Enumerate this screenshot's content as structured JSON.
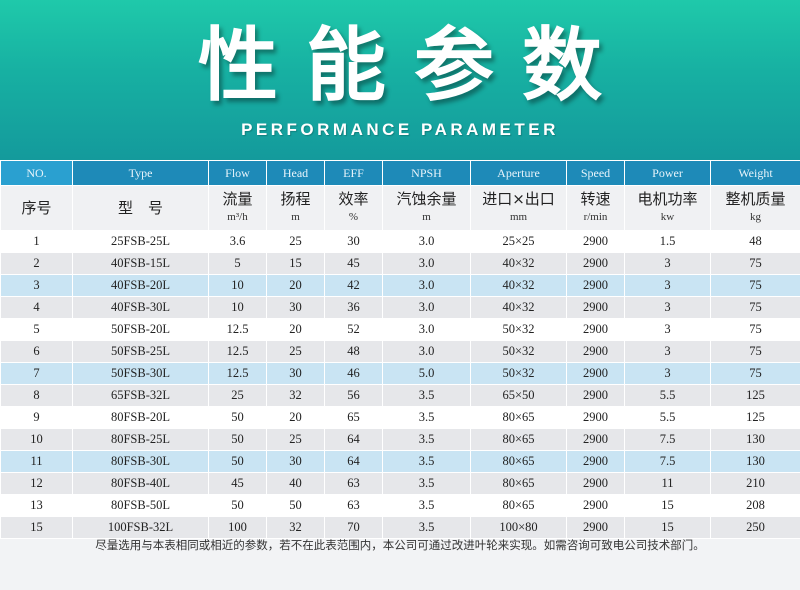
{
  "banner": {
    "title": "性能参数",
    "subtitle": "PERFORMANCE PARAMETER"
  },
  "columns": [
    {
      "en": "NO.",
      "cn": "序号",
      "unit": ""
    },
    {
      "en": "Type",
      "cn": "型　号",
      "unit": ""
    },
    {
      "en": "Flow",
      "cn": "流量",
      "unit": "m³/h"
    },
    {
      "en": "Head",
      "cn": "扬程",
      "unit": "m"
    },
    {
      "en": "EFF",
      "cn": "效率",
      "unit": "%"
    },
    {
      "en": "NPSH",
      "cn": "汽蚀余量",
      "unit": "m"
    },
    {
      "en": "Aperture",
      "cn": "进口×出口",
      "unit": "mm"
    },
    {
      "en": "Speed",
      "cn": "转速",
      "unit": "r/min"
    },
    {
      "en": "Power",
      "cn": "电机功率",
      "unit": "kw"
    },
    {
      "en": "Weight",
      "cn": "整机质量",
      "unit": "kg"
    }
  ],
  "rows": [
    {
      "no": "1",
      "type": "25FSB-25L",
      "flow": "3.6",
      "head": "25",
      "eff": "30",
      "npsh": "3.0",
      "aperture": "25×25",
      "speed": "2900",
      "power": "1.5",
      "weight": "48"
    },
    {
      "no": "2",
      "type": "40FSB-15L",
      "flow": "5",
      "head": "15",
      "eff": "45",
      "npsh": "3.0",
      "aperture": "40×32",
      "speed": "2900",
      "power": "3",
      "weight": "75"
    },
    {
      "no": "3",
      "type": "40FSB-20L",
      "flow": "10",
      "head": "20",
      "eff": "42",
      "npsh": "3.0",
      "aperture": "40×32",
      "speed": "2900",
      "power": "3",
      "weight": "75"
    },
    {
      "no": "4",
      "type": "40FSB-30L",
      "flow": "10",
      "head": "30",
      "eff": "36",
      "npsh": "3.0",
      "aperture": "40×32",
      "speed": "2900",
      "power": "3",
      "weight": "75"
    },
    {
      "no": "5",
      "type": "50FSB-20L",
      "flow": "12.5",
      "head": "20",
      "eff": "52",
      "npsh": "3.0",
      "aperture": "50×32",
      "speed": "2900",
      "power": "3",
      "weight": "75"
    },
    {
      "no": "6",
      "type": "50FSB-25L",
      "flow": "12.5",
      "head": "25",
      "eff": "48",
      "npsh": "3.0",
      "aperture": "50×32",
      "speed": "2900",
      "power": "3",
      "weight": "75"
    },
    {
      "no": "7",
      "type": "50FSB-30L",
      "flow": "12.5",
      "head": "30",
      "eff": "46",
      "npsh": "5.0",
      "aperture": "50×32",
      "speed": "2900",
      "power": "3",
      "weight": "75"
    },
    {
      "no": "8",
      "type": "65FSB-32L",
      "flow": "25",
      "head": "32",
      "eff": "56",
      "npsh": "3.5",
      "aperture": "65×50",
      "speed": "2900",
      "power": "5.5",
      "weight": "125"
    },
    {
      "no": "9",
      "type": "80FSB-20L",
      "flow": "50",
      "head": "20",
      "eff": "65",
      "npsh": "3.5",
      "aperture": "80×65",
      "speed": "2900",
      "power": "5.5",
      "weight": "125"
    },
    {
      "no": "10",
      "type": "80FSB-25L",
      "flow": "50",
      "head": "25",
      "eff": "64",
      "npsh": "3.5",
      "aperture": "80×65",
      "speed": "2900",
      "power": "7.5",
      "weight": "130"
    },
    {
      "no": "11",
      "type": "80FSB-30L",
      "flow": "50",
      "head": "30",
      "eff": "64",
      "npsh": "3.5",
      "aperture": "80×65",
      "speed": "2900",
      "power": "7.5",
      "weight": "130"
    },
    {
      "no": "12",
      "type": "80FSB-40L",
      "flow": "45",
      "head": "40",
      "eff": "63",
      "npsh": "3.5",
      "aperture": "80×65",
      "speed": "2900",
      "power": "11",
      "weight": "210"
    },
    {
      "no": "13",
      "type": "80FSB-50L",
      "flow": "50",
      "head": "50",
      "eff": "63",
      "npsh": "3.5",
      "aperture": "80×65",
      "speed": "2900",
      "power": "15",
      "weight": "208"
    },
    {
      "no": "15",
      "type": "100FSB-32L",
      "flow": "100",
      "head": "32",
      "eff": "70",
      "npsh": "3.5",
      "aperture": "100×80",
      "speed": "2900",
      "power": "15",
      "weight": "250"
    }
  ],
  "footnote": "尽量选用与本表相同或相近的参数，若不在此表范围内，本公司可通过改进叶轮来实现。如需咨询可致电公司技术部门。",
  "colors": {
    "banner_top": "#1fc9aa",
    "banner_bottom": "#149a9c",
    "header_blue": "#1e8ab8",
    "row_blue": "#c9e4f3",
    "row_gray": "#e6e7ea"
  }
}
